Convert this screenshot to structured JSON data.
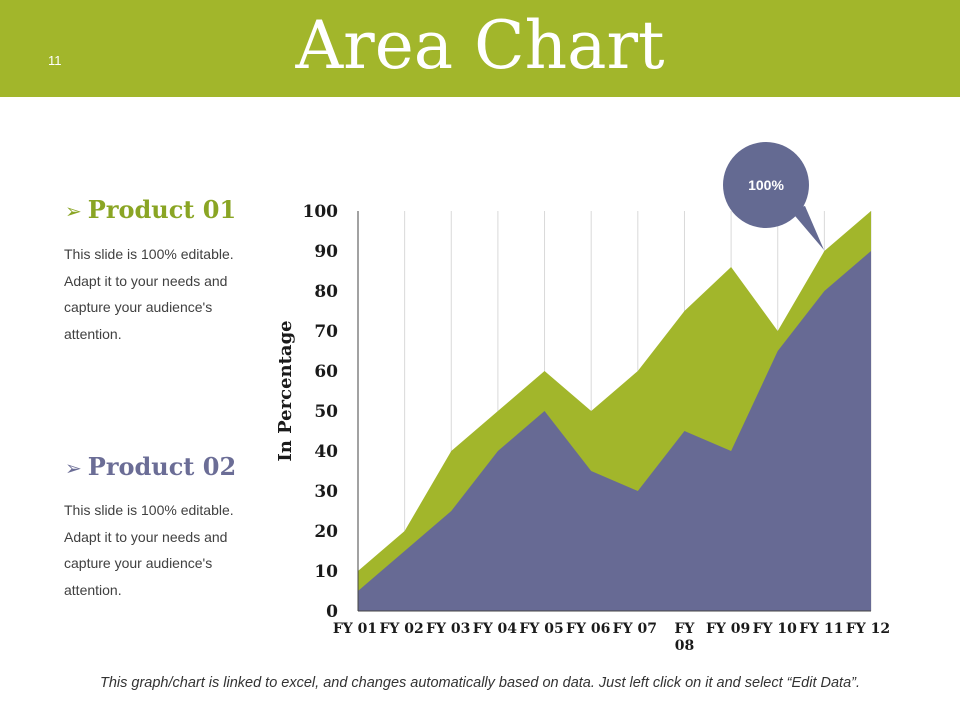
{
  "slide": {
    "number": "11",
    "title": "Area Chart",
    "header_color": "#a2b62b"
  },
  "products": [
    {
      "name": "Product 01",
      "color": "#8aa524",
      "description": "This slide is 100% editable. Adapt it to your needs and capture your audience's attention."
    },
    {
      "name": "Product 02",
      "color": "#6b6d96",
      "description": "This slide is 100% editable. Adapt it to your needs and capture your audience's attention."
    }
  ],
  "callout": {
    "text": "100%",
    "color": "#646a92"
  },
  "footer": {
    "note": "This graph/chart is linked to excel, and changes automatically based on data. Just left click on it and select “Edit Data”."
  },
  "chart_data": {
    "type": "area",
    "ylabel": "In Percentage",
    "xlabel": "",
    "ylim": [
      0,
      100
    ],
    "yticks": [
      0,
      10,
      20,
      30,
      40,
      50,
      60,
      70,
      80,
      90,
      100
    ],
    "grid": "vertical",
    "categories": [
      "FY 01",
      "FY 02",
      "FY 03",
      "FY 04",
      "FY 05",
      "FY 06",
      "FY 07",
      "FY 08",
      "FY 09",
      "FY 10",
      "FY 11",
      "FY 12"
    ],
    "series": [
      {
        "name": "Product 01",
        "color": "#a2b62b",
        "values": [
          10,
          20,
          40,
          50,
          60,
          50,
          60,
          75,
          86,
          70,
          90,
          100
        ]
      },
      {
        "name": "Product 02",
        "color": "#676a94",
        "values": [
          5,
          15,
          25,
          40,
          50,
          35,
          30,
          45,
          40,
          65,
          80,
          90
        ]
      }
    ]
  }
}
